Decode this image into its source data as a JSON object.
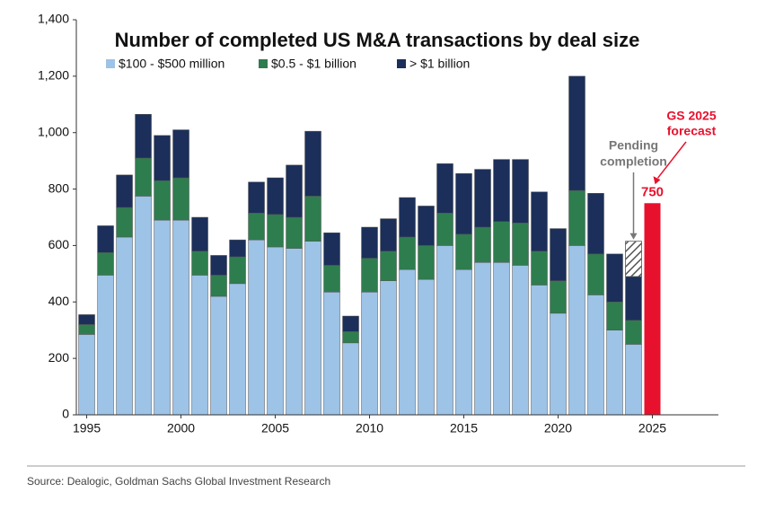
{
  "chart_data": {
    "type": "stacked-bar",
    "title": "Number of completed US M&A transactions by deal size",
    "x": [
      1995,
      1996,
      1997,
      1998,
      1999,
      2000,
      2001,
      2002,
      2003,
      2004,
      2005,
      2006,
      2007,
      2008,
      2009,
      2010,
      2011,
      2012,
      2013,
      2014,
      2015,
      2016,
      2017,
      2018,
      2019,
      2020,
      2021,
      2022,
      2023,
      2024
    ],
    "series": [
      {
        "name": "$100 - $500 million",
        "color": "#9dc3e6",
        "values": [
          285,
          495,
          630,
          775,
          690,
          690,
          495,
          420,
          465,
          620,
          595,
          590,
          615,
          435,
          255,
          435,
          475,
          515,
          480,
          600,
          515,
          540,
          540,
          530,
          460,
          360,
          600,
          425,
          300,
          250
        ]
      },
      {
        "name": "$0.5 - $1 billion",
        "color": "#2e7d4f",
        "values": [
          35,
          80,
          105,
          135,
          140,
          150,
          85,
          75,
          95,
          95,
          115,
          110,
          160,
          95,
          40,
          120,
          105,
          115,
          120,
          115,
          125,
          125,
          145,
          150,
          120,
          115,
          195,
          145,
          100,
          85
        ]
      },
      {
        "name": "> $1 billion",
        "color": "#1b2f5a",
        "values": [
          35,
          95,
          115,
          155,
          160,
          170,
          120,
          70,
          60,
          110,
          130,
          185,
          230,
          115,
          55,
          110,
          115,
          140,
          140,
          175,
          215,
          205,
          220,
          225,
          210,
          185,
          405,
          215,
          170,
          155
        ]
      }
    ],
    "pending": {
      "x": 2024,
      "value": 125,
      "annotation": [
        "Pending",
        "completion"
      ]
    },
    "forecast": {
      "x": 2025,
      "value": 750,
      "value_label": "750",
      "color": "#e8112d",
      "annotation": [
        "GS 2025",
        "forecast"
      ]
    },
    "xlim": [
      1994.45,
      2028.5
    ],
    "xticks": [
      1995,
      2000,
      2005,
      2010,
      2015,
      2020,
      2025
    ],
    "ylim": [
      0,
      1400
    ],
    "yticks": [
      0,
      200,
      400,
      600,
      800,
      {
        "value": 1000,
        "label": "1,000"
      },
      {
        "value": 1200,
        "label": "1,200"
      },
      {
        "value": 1400,
        "label": "1,400"
      }
    ],
    "source": "Source: Dealogic, Goldman Sachs Global Investment Research"
  }
}
